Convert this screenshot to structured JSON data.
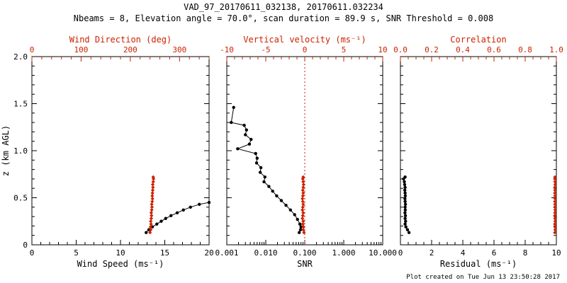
{
  "title": "VAD_97_20170611_032138, 20170611.032234",
  "subtitle": "Nbeams = 8, Elevation angle = 70.0°, scan duration = 89.9 s, SNR Threshold = 0.008",
  "footer": "Plot created on Tue Jun 13 23:50:28 2017",
  "colors": {
    "primary": "#000000",
    "secondary": "#cc2200",
    "background": "#ffffff"
  },
  "chart_data": [
    {
      "type": "line",
      "name": "wind-panel",
      "y_axis": {
        "label": "z (km AGL)",
        "range": [
          0,
          2.0
        ],
        "tick_values": [
          0,
          0.5,
          1.0,
          1.5,
          2.0
        ],
        "tick_labels": [
          "0",
          "0.5",
          "1.0",
          "1.5",
          "2.0"
        ],
        "minor_step": 0.1,
        "show_labels": true
      },
      "x_bottom": {
        "label": "Wind Speed (ms⁻¹)",
        "scale": "linear",
        "range": [
          0,
          20
        ],
        "tick_values": [
          0,
          5,
          10,
          15,
          20
        ],
        "tick_labels": [
          "0",
          "5",
          "10",
          "15",
          "20"
        ],
        "minor_step": 1
      },
      "x_top": {
        "label": "Wind Direction (deg)",
        "scale": "linear",
        "range": [
          0,
          360
        ],
        "tick_values": [
          0,
          100,
          200,
          300
        ],
        "tick_labels": [
          "0",
          "100",
          "200",
          "300"
        ],
        "minor_step": 20
      },
      "series": [
        {
          "name": "wind-speed",
          "axis": "bottom",
          "color": "#000000",
          "marker": "circle",
          "x": [
            12.9,
            13.2,
            13.6,
            14.1,
            14.6,
            15.1,
            15.7,
            16.4,
            17.1,
            17.9,
            18.9,
            20.0
          ],
          "z": [
            0.13,
            0.16,
            0.19,
            0.22,
            0.25,
            0.28,
            0.31,
            0.34,
            0.37,
            0.4,
            0.43,
            0.45
          ]
        },
        {
          "name": "wind-direction",
          "axis": "top",
          "color": "#cc2200",
          "marker": "diamond",
          "x": [
            240,
            241.5,
            241,
            242,
            241.5,
            242.5,
            243,
            242.5,
            243.5,
            244,
            243.5,
            244.5,
            245,
            244.5,
            245,
            245.5,
            246,
            245.5,
            246.5,
            247,
            246.5
          ],
          "z": [
            0.13,
            0.16,
            0.19,
            0.22,
            0.25,
            0.28,
            0.31,
            0.34,
            0.37,
            0.4,
            0.43,
            0.46,
            0.49,
            0.52,
            0.55,
            0.58,
            0.61,
            0.64,
            0.67,
            0.7,
            0.72
          ]
        }
      ]
    },
    {
      "type": "line",
      "name": "snr-panel",
      "y_axis": {
        "label": "",
        "range": [
          0,
          2.0
        ],
        "tick_values": [
          0,
          0.5,
          1.0,
          1.5,
          2.0
        ],
        "tick_labels": [
          "0",
          "0.5",
          "1.0",
          "1.5",
          "2.0"
        ],
        "minor_step": 0.1,
        "show_labels": false
      },
      "x_bottom": {
        "label": "SNR",
        "scale": "log",
        "range": [
          0.001,
          10.0
        ],
        "tick_values": [
          0.001,
          0.01,
          0.1,
          1.0,
          10.0
        ],
        "tick_labels": [
          "0.001",
          "0.010",
          "0.100",
          "1.000",
          "10.000"
        ]
      },
      "x_top": {
        "label": "Vertical velocity (ms⁻¹)",
        "scale": "linear",
        "range": [
          -10,
          10
        ],
        "tick_values": [
          -10,
          -5,
          0,
          5,
          10
        ],
        "tick_labels": [
          "-10",
          "-5",
          "0",
          "5",
          "10"
        ],
        "minor_step": 1
      },
      "refline": {
        "axis": "top",
        "value": 0,
        "color": "#cc2200",
        "style": "dotted"
      },
      "series": [
        {
          "name": "snr",
          "axis": "bottom",
          "color": "#000000",
          "marker": "circle",
          "x": [
            0.0015,
            0.0013,
            0.0028,
            0.0032,
            0.003,
            0.0042,
            0.0038,
            0.0019,
            0.0055,
            0.006,
            0.0058,
            0.0075,
            0.0072,
            0.0095,
            0.009,
            0.012,
            0.015,
            0.019,
            0.025,
            0.033,
            0.043,
            0.055,
            0.065,
            0.075,
            0.08,
            0.078,
            0.072
          ],
          "z": [
            1.46,
            1.3,
            1.27,
            1.22,
            1.17,
            1.12,
            1.07,
            1.02,
            0.97,
            0.92,
            0.87,
            0.82,
            0.77,
            0.72,
            0.67,
            0.62,
            0.57,
            0.52,
            0.47,
            0.42,
            0.37,
            0.32,
            0.27,
            0.22,
            0.19,
            0.16,
            0.13
          ]
        },
        {
          "name": "vertical-velocity",
          "axis": "top",
          "color": "#cc2200",
          "marker": "diamond",
          "x": [
            -0.1,
            -0.2,
            -0.15,
            -0.25,
            -0.2,
            -0.3,
            -0.25,
            -0.2,
            -0.3,
            -0.25,
            -0.2,
            -0.25,
            -0.3,
            -0.25,
            -0.2,
            -0.25,
            -0.2,
            -0.15,
            -0.2,
            -0.25,
            -0.2
          ],
          "z": [
            0.13,
            0.16,
            0.19,
            0.22,
            0.25,
            0.28,
            0.31,
            0.34,
            0.37,
            0.4,
            0.43,
            0.46,
            0.49,
            0.52,
            0.55,
            0.58,
            0.61,
            0.64,
            0.67,
            0.7,
            0.72
          ]
        }
      ]
    },
    {
      "type": "line",
      "name": "residual-panel",
      "y_axis": {
        "label": "",
        "range": [
          0,
          2.0
        ],
        "tick_values": [
          0,
          0.5,
          1.0,
          1.5,
          2.0
        ],
        "tick_labels": [
          "0",
          "0.5",
          "1.0",
          "1.5",
          "2.0"
        ],
        "minor_step": 0.1,
        "show_labels": false
      },
      "x_bottom": {
        "label": "Residual (ms⁻¹)",
        "scale": "linear",
        "range": [
          0,
          10
        ],
        "tick_values": [
          0,
          2,
          4,
          6,
          8,
          10
        ],
        "tick_labels": [
          "0",
          "2",
          "4",
          "6",
          "8",
          "10"
        ],
        "minor_step": 0.5
      },
      "x_top": {
        "label": "Correlation",
        "scale": "linear",
        "range": [
          0,
          1.0
        ],
        "tick_values": [
          0,
          0.2,
          0.4,
          0.6,
          0.8,
          1.0
        ],
        "tick_labels": [
          "0.0",
          "0.2",
          "0.4",
          "0.6",
          "0.8",
          "1.0"
        ],
        "minor_step": 0.05
      },
      "series": [
        {
          "name": "residual",
          "axis": "bottom",
          "color": "#000000",
          "marker": "circle",
          "x": [
            0.55,
            0.45,
            0.35,
            0.3,
            0.33,
            0.3,
            0.32,
            0.29,
            0.31,
            0.3,
            0.32,
            0.3,
            0.29,
            0.31,
            0.3,
            0.28,
            0.3,
            0.27,
            0.25,
            0.2,
            0.3
          ],
          "z": [
            0.13,
            0.16,
            0.19,
            0.22,
            0.25,
            0.28,
            0.31,
            0.34,
            0.37,
            0.4,
            0.43,
            0.46,
            0.49,
            0.52,
            0.55,
            0.58,
            0.61,
            0.64,
            0.67,
            0.7,
            0.72
          ]
        },
        {
          "name": "correlation",
          "axis": "top",
          "color": "#cc2200",
          "marker": "diamond",
          "x": [
            0.99,
            0.992,
            0.991,
            0.99,
            0.992,
            0.991,
            0.99,
            0.991,
            0.992,
            0.99,
            0.991,
            0.99,
            0.992,
            0.991,
            0.99,
            0.991,
            0.99,
            0.992,
            0.991,
            0.99,
            0.991
          ],
          "z": [
            0.13,
            0.16,
            0.19,
            0.22,
            0.25,
            0.28,
            0.31,
            0.34,
            0.37,
            0.4,
            0.43,
            0.46,
            0.49,
            0.52,
            0.55,
            0.58,
            0.61,
            0.64,
            0.67,
            0.7,
            0.72
          ]
        }
      ]
    }
  ]
}
